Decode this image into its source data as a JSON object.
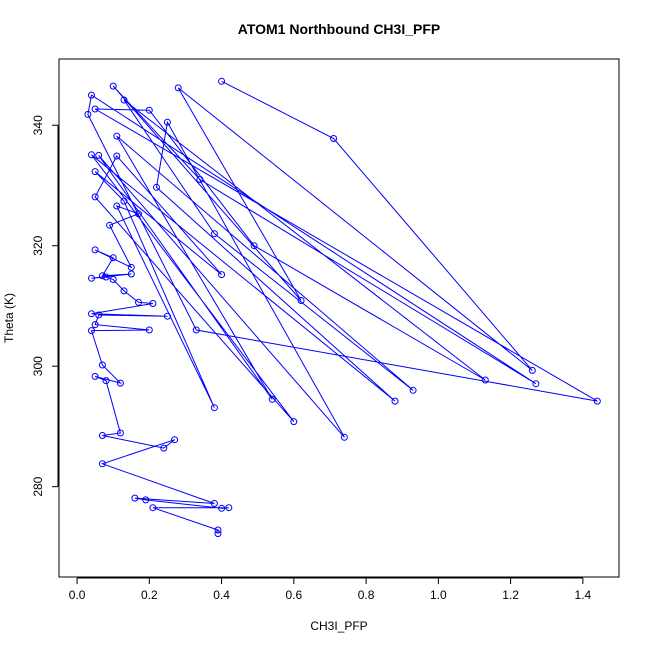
{
  "chart_data": {
    "type": "line",
    "title": "ATOM1 Northbound CH3I_PFP",
    "xlabel": "CH3I_PFP",
    "ylabel": "Theta (K)",
    "xlim": [
      -0.05,
      1.5
    ],
    "ylim": [
      265,
      351
    ],
    "x_ticks": [
      0.0,
      0.2,
      0.4,
      0.6,
      0.8,
      1.0,
      1.2,
      1.4
    ],
    "x_tick_labels": [
      "0.0",
      "0.2",
      "0.4",
      "0.6",
      "0.8",
      "1.0",
      "1.2",
      "1.4"
    ],
    "y_ticks": [
      280,
      300,
      320,
      340
    ],
    "y_tick_labels": [
      "280",
      "300",
      "320",
      "340"
    ],
    "grid": false,
    "legend": "none",
    "color": "#0000ff",
    "points": [
      [
        0.4,
        347.3
      ],
      [
        0.71,
        337.8
      ],
      [
        1.26,
        299.3
      ],
      [
        0.28,
        346.2
      ],
      [
        0.62,
        310.9
      ],
      [
        0.1,
        346.5
      ],
      [
        0.34,
        331.0
      ],
      [
        1.27,
        297.1
      ],
      [
        0.04,
        345.0
      ],
      [
        0.03,
        341.8
      ],
      [
        0.33,
        306.0
      ],
      [
        1.44,
        294.2
      ],
      [
        0.05,
        342.7
      ],
      [
        0.2,
        342.5
      ],
      [
        0.49,
        320.0
      ],
      [
        1.13,
        297.7
      ],
      [
        0.13,
        344.2
      ],
      [
        0.38,
        322.0
      ],
      [
        0.93,
        296.0
      ],
      [
        0.11,
        338.2
      ],
      [
        0.54,
        294.5
      ],
      [
        0.06,
        335.0
      ],
      [
        0.74,
        288.2
      ],
      [
        0.25,
        340.5
      ],
      [
        0.22,
        329.7
      ],
      [
        0.88,
        294.2
      ],
      [
        0.04,
        335.1
      ],
      [
        0.6,
        290.8
      ],
      [
        0.05,
        328.1
      ],
      [
        0.11,
        334.9
      ],
      [
        0.4,
        315.2
      ],
      [
        0.05,
        332.3
      ],
      [
        0.13,
        327.4
      ],
      [
        0.38,
        293.1
      ],
      [
        0.11,
        326.6
      ],
      [
        0.17,
        325.3
      ],
      [
        0.09,
        323.4
      ],
      [
        0.15,
        316.4
      ],
      [
        0.05,
        319.3
      ],
      [
        0.1,
        318.0
      ],
      [
        0.07,
        315.0
      ],
      [
        0.15,
        315.3
      ],
      [
        0.04,
        314.6
      ],
      [
        0.08,
        314.8
      ],
      [
        0.1,
        314.4
      ],
      [
        0.13,
        312.5
      ],
      [
        0.17,
        310.6
      ],
      [
        0.21,
        310.4
      ],
      [
        0.04,
        308.7
      ],
      [
        0.25,
        308.3
      ],
      [
        0.06,
        308.5
      ],
      [
        0.05,
        306.9
      ],
      [
        0.2,
        306.0
      ],
      [
        0.04,
        305.9
      ],
      [
        0.07,
        300.2
      ],
      [
        0.12,
        297.2
      ],
      [
        0.05,
        298.3
      ],
      [
        0.08,
        297.6
      ],
      [
        0.12,
        288.9
      ],
      [
        0.07,
        288.5
      ],
      [
        0.24,
        286.4
      ],
      [
        0.27,
        287.8
      ],
      [
        0.07,
        283.8
      ],
      [
        0.38,
        277.2
      ],
      [
        0.16,
        278.1
      ],
      [
        0.19,
        277.8
      ],
      [
        0.4,
        276.4
      ],
      [
        0.42,
        276.5
      ],
      [
        0.21,
        276.5
      ],
      [
        0.39,
        272.8
      ],
      [
        0.39,
        272.2
      ]
    ]
  }
}
